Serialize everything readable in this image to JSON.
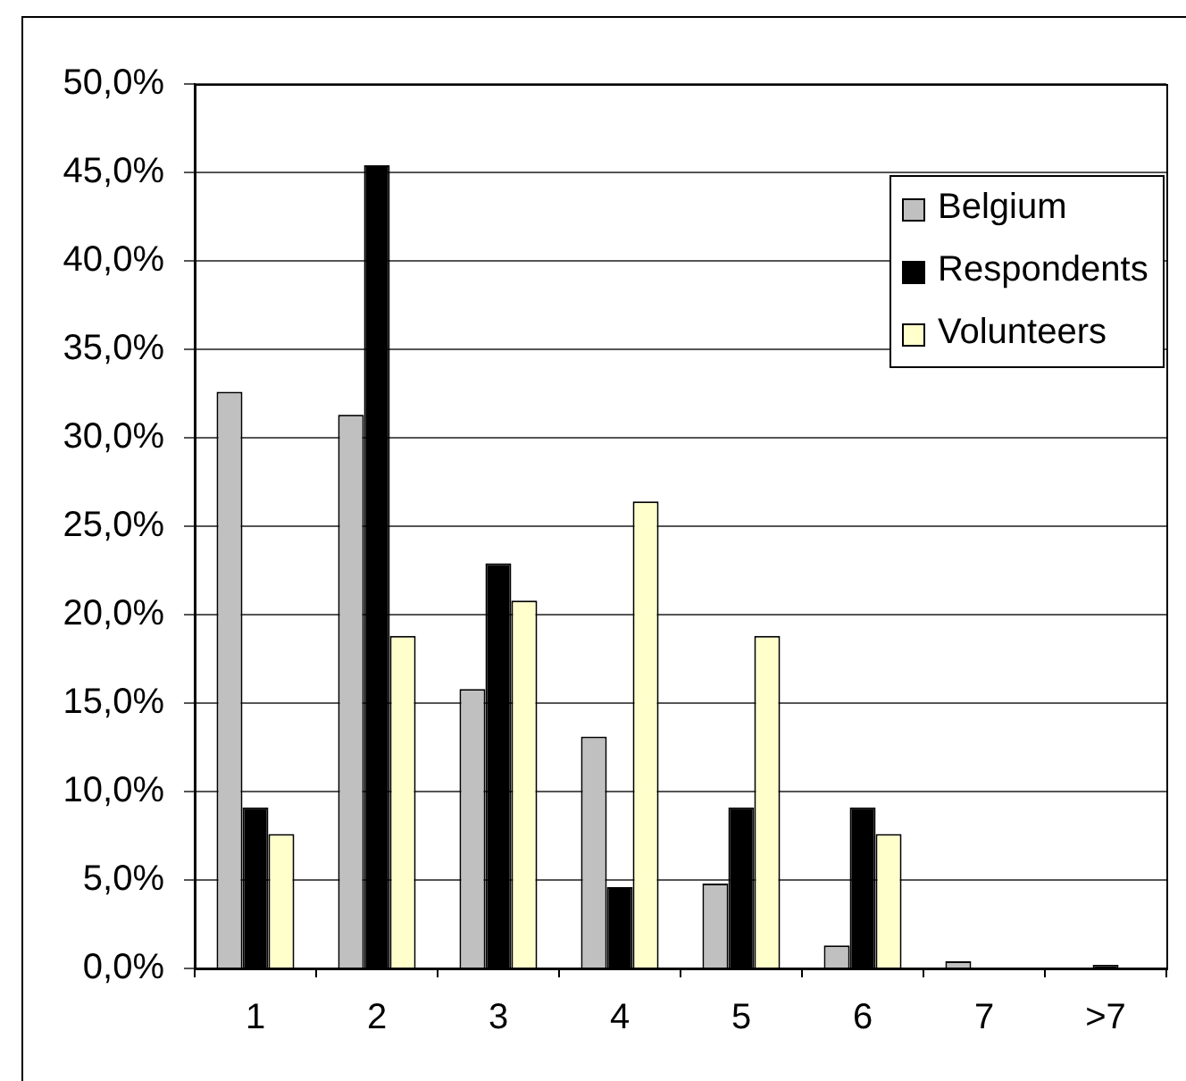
{
  "chart_data": {
    "type": "bar",
    "categories": [
      "1",
      "2",
      "3",
      "4",
      "5",
      "6",
      "7",
      ">7"
    ],
    "series": [
      {
        "name": "Belgium",
        "color": "#c0c0c0",
        "values": [
          32.6,
          31.3,
          15.8,
          13.1,
          4.8,
          1.3,
          0.4,
          0
        ]
      },
      {
        "name": "Respondents",
        "color": "#000000",
        "values": [
          9.1,
          45.4,
          22.9,
          4.6,
          9.1,
          9.1,
          0,
          0.2
        ]
      },
      {
        "name": "Volunteers",
        "color": "#ffffcc",
        "values": [
          7.6,
          18.8,
          20.8,
          26.4,
          18.8,
          7.6,
          0,
          0
        ]
      }
    ],
    "ylim": [
      0,
      50
    ],
    "yticks": [
      {
        "value": 0,
        "label": "0,0%"
      },
      {
        "value": 5,
        "label": "5,0%"
      },
      {
        "value": 10,
        "label": "10,0%"
      },
      {
        "value": 15,
        "label": "15,0%"
      },
      {
        "value": 20,
        "label": "20,0%"
      },
      {
        "value": 25,
        "label": "25,0%"
      },
      {
        "value": 30,
        "label": "30,0%"
      },
      {
        "value": 35,
        "label": "35,0%"
      },
      {
        "value": 40,
        "label": "40,0%"
      },
      {
        "value": 45,
        "label": "45,0%"
      },
      {
        "value": 50,
        "label": "50,0%"
      }
    ],
    "grid": "y",
    "legend": "top right"
  }
}
